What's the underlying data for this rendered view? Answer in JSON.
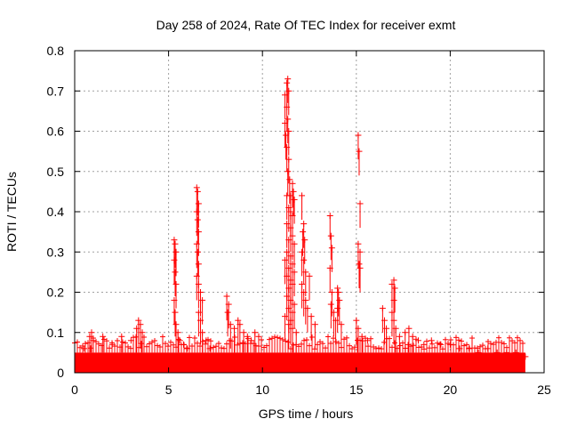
{
  "chart_data": {
    "type": "scatter",
    "title": "Day 258 of 2024, Rate Of TEC Index for receiver exmt",
    "xlabel": "GPS time / hours",
    "ylabel": "ROTI / TECUs",
    "xlim": [
      0,
      25
    ],
    "ylim": [
      0,
      0.8
    ],
    "x_ticks": [
      "0",
      "5",
      "10",
      "15",
      "20",
      "25"
    ],
    "y_ticks": [
      "0",
      "0.1",
      "0.2",
      "0.3",
      "0.4",
      "0.5",
      "0.6",
      "0.7",
      "0.8"
    ],
    "x_tick_values": [
      0,
      5,
      10,
      15,
      20,
      25
    ],
    "y_tick_values": [
      0,
      0.1,
      0.2,
      0.3,
      0.4,
      0.5,
      0.6,
      0.7,
      0.8
    ],
    "grid": true,
    "marker": "+",
    "color": "#ff0000",
    "background_band": {
      "x_range": [
        0,
        24
      ],
      "typical_max": 0.05
    },
    "points": [
      [
        0.5,
        0.06
      ],
      [
        0.8,
        0.09
      ],
      [
        0.9,
        0.1
      ],
      [
        1.0,
        0.08
      ],
      [
        1.5,
        0.09
      ],
      [
        2.0,
        0.07
      ],
      [
        2.5,
        0.09
      ],
      [
        3.0,
        0.08
      ],
      [
        3.3,
        0.11
      ],
      [
        3.4,
        0.13
      ],
      [
        3.5,
        0.12
      ],
      [
        3.6,
        0.1
      ],
      [
        5.3,
        0.33
      ],
      [
        5.35,
        0.32
      ],
      [
        5.4,
        0.3
      ],
      [
        5.3,
        0.28
      ],
      [
        5.35,
        0.25
      ],
      [
        5.4,
        0.22
      ],
      [
        5.3,
        0.18
      ],
      [
        5.35,
        0.15
      ],
      [
        5.4,
        0.12
      ],
      [
        5.5,
        0.1
      ],
      [
        5.6,
        0.08
      ],
      [
        5.8,
        0.07
      ],
      [
        6.0,
        0.06
      ],
      [
        6.5,
        0.46
      ],
      [
        6.55,
        0.45
      ],
      [
        6.6,
        0.42
      ],
      [
        6.5,
        0.4
      ],
      [
        6.55,
        0.38
      ],
      [
        6.6,
        0.35
      ],
      [
        6.5,
        0.32
      ],
      [
        6.55,
        0.3
      ],
      [
        6.6,
        0.27
      ],
      [
        6.5,
        0.24
      ],
      [
        6.6,
        0.22
      ],
      [
        6.7,
        0.2
      ],
      [
        6.8,
        0.18
      ],
      [
        6.6,
        0.15
      ],
      [
        6.7,
        0.13
      ],
      [
        6.8,
        0.1
      ],
      [
        7.0,
        0.08
      ],
      [
        7.2,
        0.06
      ],
      [
        8.1,
        0.19
      ],
      [
        8.2,
        0.17
      ],
      [
        8.15,
        0.15
      ],
      [
        8.3,
        0.12
      ],
      [
        8.5,
        0.11
      ],
      [
        8.7,
        0.13
      ],
      [
        8.8,
        0.12
      ],
      [
        9.0,
        0.1
      ],
      [
        9.2,
        0.09
      ],
      [
        9.4,
        0.08
      ],
      [
        9.6,
        0.1
      ],
      [
        9.8,
        0.09
      ],
      [
        11.2,
        0.69
      ],
      [
        11.3,
        0.72
      ],
      [
        11.35,
        0.73
      ],
      [
        11.4,
        0.7
      ],
      [
        11.3,
        0.66
      ],
      [
        11.35,
        0.63
      ],
      [
        11.4,
        0.6
      ],
      [
        11.2,
        0.62
      ],
      [
        11.25,
        0.59
      ],
      [
        11.3,
        0.56
      ],
      [
        11.4,
        0.53
      ],
      [
        11.35,
        0.5
      ],
      [
        11.45,
        0.48
      ],
      [
        11.6,
        0.47
      ],
      [
        11.65,
        0.45
      ],
      [
        11.7,
        0.43
      ],
      [
        11.5,
        0.44
      ],
      [
        11.3,
        0.44
      ],
      [
        11.4,
        0.41
      ],
      [
        11.5,
        0.4
      ],
      [
        11.6,
        0.39
      ],
      [
        11.3,
        0.37
      ],
      [
        11.5,
        0.36
      ],
      [
        11.6,
        0.34
      ],
      [
        11.4,
        0.33
      ],
      [
        11.7,
        0.32
      ],
      [
        11.3,
        0.3
      ],
      [
        11.5,
        0.29
      ],
      [
        11.2,
        0.28
      ],
      [
        11.6,
        0.27
      ],
      [
        11.4,
        0.26
      ],
      [
        11.7,
        0.25
      ],
      [
        11.3,
        0.24
      ],
      [
        11.5,
        0.23
      ],
      [
        11.6,
        0.22
      ],
      [
        11.4,
        0.21
      ],
      [
        11.3,
        0.19
      ],
      [
        11.5,
        0.18
      ],
      [
        11.7,
        0.17
      ],
      [
        11.4,
        0.16
      ],
      [
        11.6,
        0.15
      ],
      [
        11.2,
        0.14
      ],
      [
        11.5,
        0.13
      ],
      [
        11.4,
        0.12
      ],
      [
        11.6,
        0.11
      ],
      [
        11.8,
        0.1
      ],
      [
        12.1,
        0.44
      ],
      [
        12.2,
        0.37
      ],
      [
        12.15,
        0.35
      ],
      [
        12.25,
        0.33
      ],
      [
        12.1,
        0.3
      ],
      [
        12.2,
        0.28
      ],
      [
        12.3,
        0.25
      ],
      [
        12.1,
        0.22
      ],
      [
        12.2,
        0.2
      ],
      [
        12.3,
        0.18
      ],
      [
        12.5,
        0.24
      ],
      [
        12.4,
        0.16
      ],
      [
        12.6,
        0.14
      ],
      [
        12.8,
        0.12
      ],
      [
        13.6,
        0.39
      ],
      [
        13.65,
        0.34
      ],
      [
        13.7,
        0.31
      ],
      [
        13.6,
        0.26
      ],
      [
        13.7,
        0.2
      ],
      [
        13.65,
        0.17
      ],
      [
        13.8,
        0.15
      ],
      [
        13.9,
        0.13
      ],
      [
        14.0,
        0.21
      ],
      [
        14.05,
        0.2
      ],
      [
        14.1,
        0.18
      ],
      [
        14.0,
        0.16
      ],
      [
        14.2,
        0.12
      ],
      [
        15.1,
        0.59
      ],
      [
        15.15,
        0.55
      ],
      [
        15.2,
        0.42
      ],
      [
        15.1,
        0.32
      ],
      [
        15.2,
        0.3
      ],
      [
        15.15,
        0.27
      ],
      [
        15.2,
        0.26
      ],
      [
        15.0,
        0.13
      ],
      [
        15.1,
        0.11
      ],
      [
        15.3,
        0.09
      ],
      [
        15.6,
        0.08
      ],
      [
        16.4,
        0.16
      ],
      [
        16.5,
        0.13
      ],
      [
        16.6,
        0.11
      ],
      [
        16.9,
        0.22
      ],
      [
        17.0,
        0.23
      ],
      [
        17.05,
        0.21
      ],
      [
        17.0,
        0.18
      ],
      [
        16.9,
        0.15
      ],
      [
        17.0,
        0.13
      ],
      [
        17.1,
        0.11
      ],
      [
        17.3,
        0.09
      ],
      [
        17.6,
        0.1
      ],
      [
        17.8,
        0.11
      ],
      [
        18.0,
        0.09
      ],
      [
        18.3,
        0.08
      ],
      [
        18.6,
        0.07
      ],
      [
        19.0,
        0.08
      ],
      [
        19.5,
        0.07
      ],
      [
        20.0,
        0.07
      ],
      [
        20.5,
        0.06
      ],
      [
        21.0,
        0.06
      ],
      [
        21.5,
        0.05
      ],
      [
        22.0,
        0.06
      ],
      [
        22.5,
        0.05
      ],
      [
        23.0,
        0.05
      ],
      [
        23.5,
        0.05
      ],
      [
        24.0,
        0.04
      ]
    ]
  }
}
